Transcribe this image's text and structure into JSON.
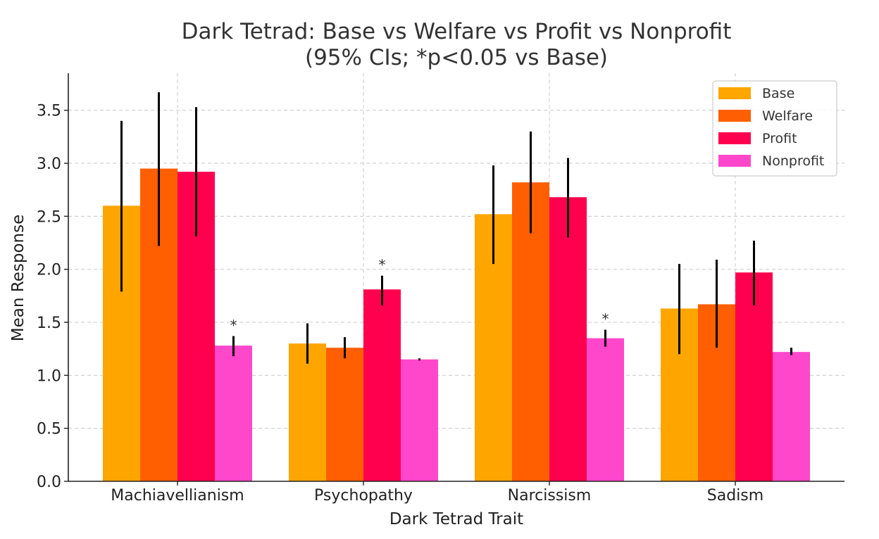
{
  "chart_data": {
    "type": "bar",
    "title": "Dark Tetrad: Base vs Welfare vs Profit vs Nonprofit",
    "subtitle": "(95% CIs; *p<0.05 vs Base)",
    "xlabel": "Dark Tetrad Trait",
    "ylabel": "Mean Response",
    "categories": [
      "Machiavellianism",
      "Psychopathy",
      "Narcissism",
      "Sadism"
    ],
    "ylim": [
      0,
      3.85
    ],
    "yticks": [
      0.0,
      0.5,
      1.0,
      1.5,
      2.0,
      2.5,
      3.0,
      3.5
    ],
    "ytick_labels": [
      "0.0",
      "0.5",
      "1.0",
      "1.5",
      "2.0",
      "2.5",
      "3.0",
      "3.5"
    ],
    "grid": true,
    "legend_position": "top-right",
    "series": [
      {
        "name": "Base",
        "color": "#FFA500",
        "values": [
          2.6,
          1.3,
          2.52,
          1.63
        ],
        "ci_low": [
          1.79,
          1.11,
          2.05,
          1.2
        ],
        "ci_high": [
          3.4,
          1.49,
          2.98,
          2.05
        ],
        "significant": [
          false,
          false,
          false,
          false
        ]
      },
      {
        "name": "Welfare",
        "color": "#FF5F00",
        "values": [
          2.95,
          1.26,
          2.82,
          1.67
        ],
        "ci_low": [
          2.22,
          1.16,
          2.34,
          1.26
        ],
        "ci_high": [
          3.67,
          1.36,
          3.3,
          2.09
        ],
        "significant": [
          false,
          false,
          false,
          false
        ]
      },
      {
        "name": "Profit",
        "color": "#FF004F",
        "values": [
          2.92,
          1.81,
          2.68,
          1.97
        ],
        "ci_low": [
          2.31,
          1.66,
          2.3,
          1.66
        ],
        "ci_high": [
          3.53,
          1.94,
          3.05,
          2.27
        ],
        "significant": [
          false,
          true,
          false,
          false
        ]
      },
      {
        "name": "Nonprofit",
        "color": "#FF47CC",
        "values": [
          1.28,
          1.15,
          1.35,
          1.22
        ],
        "ci_low": [
          1.18,
          1.14,
          1.27,
          1.19
        ],
        "ci_high": [
          1.37,
          1.16,
          1.43,
          1.26
        ],
        "significant": [
          true,
          false,
          true,
          false
        ]
      }
    ],
    "significance_marker": "*"
  }
}
